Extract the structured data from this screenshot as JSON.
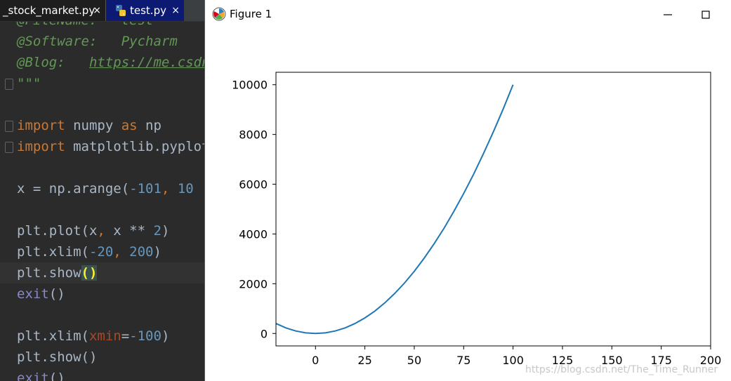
{
  "editor": {
    "tabs": [
      {
        "label": "_stock_market.py",
        "close": "×"
      },
      {
        "label": "test.py",
        "close": "×"
      }
    ],
    "lines": {
      "l0": "@FileName:   test",
      "l1_key": "@Software:",
      "l1_val": "   Pycharm",
      "l2_key": "@Blog:",
      "l2_val": "https://me.csdn.net/",
      "l3": "\"\"\"",
      "l5_kw": "import",
      "l5_a": " numpy ",
      "l5_as": "as",
      "l5_b": " np",
      "l6_kw": "import",
      "l6_a": " matplotlib.pyplot",
      "l8_a": "x = np.arange(",
      "l8_n1": "-101",
      "l8_sep": ", ",
      "l8_n2": "10",
      "l10_a": "plt.plot(x",
      "l10_sep": ", ",
      "l10_b": "x ** ",
      "l10_n": "2",
      "l10_c": ")",
      "l11_a": "plt.xlim(",
      "l11_n1": "-20",
      "l11_sep": ", ",
      "l11_n2": "200",
      "l11_c": ")",
      "l12_a": "plt.show",
      "l12_b": "()",
      "l13_fn": "exit",
      "l13_b": "()",
      "l15_a": "plt.xlim(",
      "l15_p": "xmin",
      "l15_eq": "=",
      "l15_n": "-100",
      "l15_c": ")",
      "l16": "plt.show()",
      "l17_fn": "exit",
      "l17_b": "()"
    }
  },
  "window": {
    "title": "Figure 1",
    "minimize_label": "Minimize",
    "maximize_label": "Maximize"
  },
  "colors": {
    "line": "#1f77b4",
    "accent_tab": "#0d1a73"
  },
  "watermark": "https://blog.csdn.net/The_Time_Runner",
  "chart_data": {
    "type": "line",
    "title": "",
    "xlabel": "",
    "ylabel": "",
    "xlim": [
      -20,
      200
    ],
    "ylim": [
      -500,
      10500
    ],
    "xticks": [
      0,
      25,
      50,
      75,
      100,
      125,
      150,
      175,
      200
    ],
    "yticks": [
      0,
      2000,
      4000,
      6000,
      8000,
      10000
    ],
    "grid": false,
    "series": [
      {
        "x": [
          -20,
          -15,
          -10,
          -5,
          0,
          5,
          10,
          15,
          20,
          25,
          30,
          35,
          40,
          45,
          50,
          55,
          60,
          65,
          70,
          75,
          80,
          85,
          90,
          95,
          100
        ],
        "y": [
          400,
          225,
          100,
          25,
          0,
          25,
          100,
          225,
          400,
          625,
          900,
          1225,
          1600,
          2025,
          2500,
          3025,
          3600,
          4225,
          4900,
          5625,
          6400,
          7225,
          8100,
          9025,
          10000
        ]
      }
    ]
  }
}
